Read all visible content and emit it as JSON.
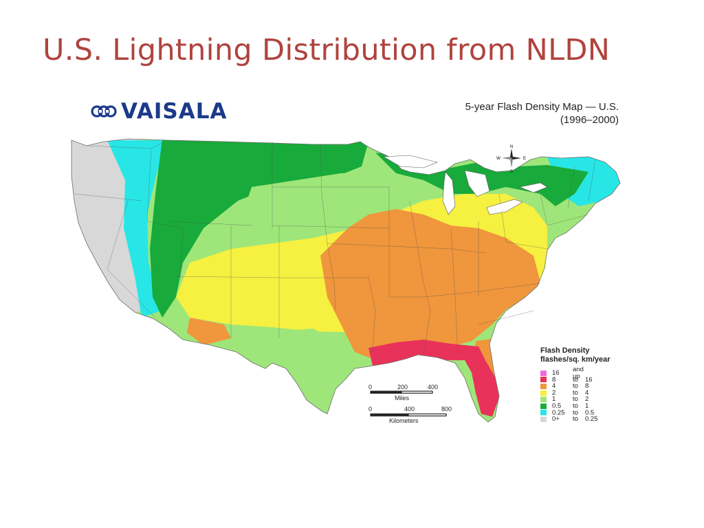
{
  "slide": {
    "title": "U.S. Lightning Distribution from NLDN"
  },
  "figure": {
    "logo": {
      "text": "VAISALA"
    },
    "map_title": [
      "5-year Flash Density Map — U.S.",
      "(1996–2000)"
    ],
    "compass": {
      "n": "N",
      "s": "S",
      "e": "E",
      "w": "W"
    },
    "legend": {
      "title": "Flash Density",
      "subtitle": "flashes/sq. km/year",
      "classes": [
        {
          "from": "16",
          "sep": "and up",
          "to": "",
          "color": "#f06ad8"
        },
        {
          "from": "8",
          "sep": "to",
          "to": "16",
          "color": "#e8325a"
        },
        {
          "from": "4",
          "sep": "to",
          "to": "8",
          "color": "#f0963c"
        },
        {
          "from": "2",
          "sep": "to",
          "to": "4",
          "color": "#f6f040"
        },
        {
          "from": "1",
          "sep": "to",
          "to": "2",
          "color": "#9ee67a"
        },
        {
          "from": "0.5",
          "sep": "to",
          "to": "1",
          "color": "#18aa3a"
        },
        {
          "from": "0.25",
          "sep": "to",
          "to": "0.5",
          "color": "#28e6e6"
        },
        {
          "from": "0+",
          "sep": "to",
          "to": "0.25",
          "color": "#d8d8d8"
        }
      ]
    },
    "scale": {
      "miles": {
        "ticks": [
          "0",
          "200",
          "400"
        ],
        "unit": "Miles"
      },
      "km": {
        "ticks": [
          "0",
          "400",
          "800"
        ],
        "unit": "Kilometers"
      }
    }
  }
}
